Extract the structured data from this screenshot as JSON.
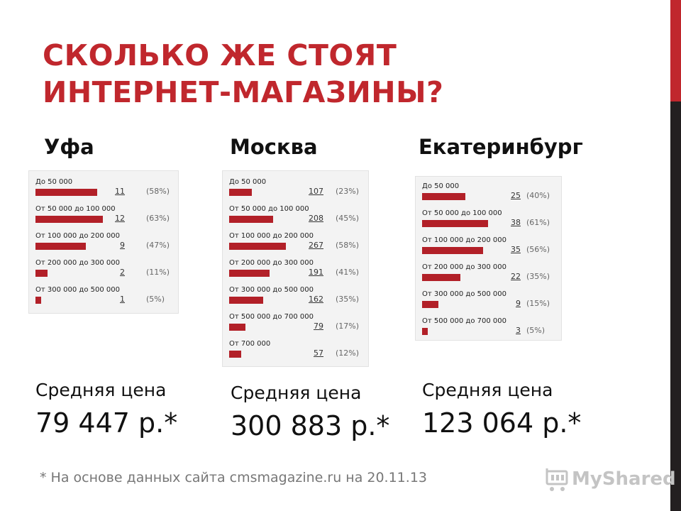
{
  "slide": {
    "title": "СКОЛЬКО ЖЕ СТОЯТ\nИНТЕРНЕТ-МАГАЗИНЫ?",
    "footnote": "* На основе данных сайта cmsmagazine.ru на 20.11.13",
    "watermark": "MyShared",
    "colors": {
      "accent": "#c0272d",
      "bar": "#b22028",
      "sidebar_dark": "#231f20"
    }
  },
  "cities": [
    {
      "name": "Уфа",
      "avg_label": "Средняя цена",
      "avg_value": "79 447 р.*"
    },
    {
      "name": "Москва",
      "avg_label": "Средняя цена",
      "avg_value": "300 883 р.*"
    },
    {
      "name": "Екатеринбург",
      "avg_label": "Средняя цена",
      "avg_value": "123 064 р.*"
    }
  ],
  "chart_data": [
    {
      "type": "bar",
      "categories": [
        "До 50 000",
        "От 50 000 до 100 000",
        "От 100 000 до 200 000",
        "От 200 000 до 300 000",
        "От 300 000 до 500 000"
      ],
      "values": [
        11,
        12,
        9,
        2,
        1
      ],
      "percent_labels": [
        "(58%)",
        "(63%)",
        "(47%)",
        "(11%)",
        "(5%)"
      ],
      "percents": [
        58,
        63,
        47,
        11,
        5
      ]
    },
    {
      "type": "bar",
      "categories": [
        "До 50 000",
        "От 50 000 до 100 000",
        "От 100 000 до 200 000",
        "От 200 000 до 300 000",
        "От 300 000 до 500 000",
        "От 500 000 до 700 000",
        "От 700 000"
      ],
      "values": [
        107,
        208,
        267,
        191,
        162,
        79,
        57
      ],
      "percent_labels": [
        "(23%)",
        "(45%)",
        "(58%)",
        "(41%)",
        "(35%)",
        "(17%)",
        "(12%)"
      ],
      "percents": [
        23,
        45,
        58,
        41,
        35,
        17,
        12
      ]
    },
    {
      "type": "bar",
      "categories": [
        "До 50 000",
        "От 50 000 до 100 000",
        "От 100 000 до 200 000",
        "От 200 000 до 300 000",
        "От 300 000 до 500 000",
        "От 500 000 до 700 000"
      ],
      "values": [
        25,
        38,
        35,
        22,
        9,
        3
      ],
      "percent_labels": [
        "(40%)",
        "(61%)",
        "(56%)",
        "(35%)",
        "(15%)",
        "(5%)"
      ],
      "percents": [
        40,
        61,
        56,
        35,
        15,
        5
      ]
    }
  ]
}
